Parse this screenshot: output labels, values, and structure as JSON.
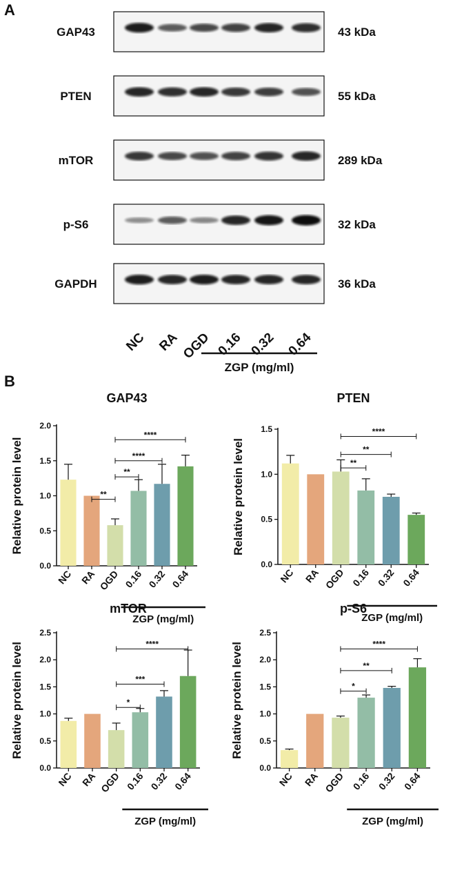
{
  "panels": {
    "a": "A",
    "b": "B"
  },
  "western_blot": {
    "rows": [
      {
        "protein": "GAP43",
        "mw": "43 kDa",
        "intensities": [
          0.9,
          0.55,
          0.65,
          0.7,
          0.85,
          0.8
        ]
      },
      {
        "protein": "PTEN",
        "mw": "55 kDa",
        "intensities": [
          0.85,
          0.8,
          0.85,
          0.75,
          0.72,
          0.6
        ]
      },
      {
        "protein": "mTOR",
        "mw": "289 kDa",
        "intensities": [
          0.75,
          0.65,
          0.6,
          0.7,
          0.78,
          0.85
        ]
      },
      {
        "protein": "p-S6",
        "mw": "32 kDa",
        "intensities": [
          0.25,
          0.55,
          0.3,
          0.85,
          0.95,
          1.0
        ]
      },
      {
        "protein": "GAPDH",
        "mw": "36 kDa",
        "intensities": [
          0.9,
          0.85,
          0.9,
          0.85,
          0.85,
          0.85
        ]
      }
    ],
    "lanes": [
      "NC",
      "RA",
      "OGD",
      "0.16",
      "0.32",
      "0.64"
    ],
    "group_label": "ZGP (mg/ml)"
  },
  "colors": [
    "#f2eca8",
    "#e4a67c",
    "#d3deaa",
    "#93bda6",
    "#6e9dac",
    "#6ca85c"
  ],
  "chart_data": [
    {
      "type": "bar",
      "title": "GAP43",
      "ylabel": "Relative protein level",
      "categories": [
        "NC",
        "RA",
        "OGD",
        "0.16",
        "0.32",
        "0.64"
      ],
      "values": [
        1.23,
        1.0,
        0.58,
        1.07,
        1.17,
        1.42
      ],
      "errors": [
        0.22,
        0.0,
        0.09,
        0.16,
        0.28,
        0.16
      ],
      "ylim": [
        0,
        2.0
      ],
      "yticks": [
        "0.0",
        "0.5",
        "1.0",
        "1.5",
        "2.0"
      ],
      "group_label": "ZGP (mg/ml)",
      "significance": [
        {
          "from": 1,
          "to": 2,
          "y": 0.95,
          "label": "**"
        },
        {
          "from": 2,
          "to": 3,
          "y": 1.27,
          "label": "**"
        },
        {
          "from": 2,
          "to": 4,
          "y": 1.5,
          "label": "****"
        },
        {
          "from": 2,
          "to": 5,
          "y": 1.8,
          "label": "****"
        }
      ]
    },
    {
      "type": "bar",
      "title": "PTEN",
      "ylabel": "Relative protein level",
      "categories": [
        "NC",
        "RA",
        "OGD",
        "0.16",
        "0.32",
        "0.64"
      ],
      "values": [
        1.12,
        1.0,
        1.03,
        0.82,
        0.75,
        0.55
      ],
      "errors": [
        0.09,
        0.0,
        0.13,
        0.13,
        0.03,
        0.02
      ],
      "ylim": [
        0,
        1.5
      ],
      "yticks": [
        "0.0",
        "0.5",
        "1.0",
        "1.5"
      ],
      "group_label": "ZGP (mg/ml)",
      "significance": [
        {
          "from": 2,
          "to": 3,
          "y": 1.07,
          "label": "**"
        },
        {
          "from": 2,
          "to": 4,
          "y": 1.22,
          "label": "**"
        },
        {
          "from": 2,
          "to": 5,
          "y": 1.42,
          "label": "****"
        }
      ]
    },
    {
      "type": "bar",
      "title": "mTOR",
      "ylabel": "Relative protein level",
      "categories": [
        "NC",
        "RA",
        "OGD",
        "0.16",
        "0.32",
        "0.64"
      ],
      "values": [
        0.87,
        1.0,
        0.7,
        1.03,
        1.32,
        1.7
      ],
      "errors": [
        0.05,
        0.0,
        0.13,
        0.07,
        0.11,
        0.48
      ],
      "ylim": [
        0,
        2.5
      ],
      "yticks": [
        "0.0",
        "0.5",
        "1.0",
        "1.5",
        "2.0",
        "2.5"
      ],
      "group_label": "ZGP (mg/ml)",
      "significance": [
        {
          "from": 2,
          "to": 3,
          "y": 1.12,
          "label": "*"
        },
        {
          "from": 2,
          "to": 4,
          "y": 1.55,
          "label": "***"
        },
        {
          "from": 2,
          "to": 5,
          "y": 2.2,
          "label": "****"
        }
      ]
    },
    {
      "type": "bar",
      "title": "p-S6",
      "ylabel": "Relative protein level",
      "categories": [
        "NC",
        "RA",
        "OGD",
        "0.16",
        "0.32",
        "0.64"
      ],
      "values": [
        0.33,
        1.0,
        0.93,
        1.3,
        1.48,
        1.86
      ],
      "errors": [
        0.02,
        0.0,
        0.03,
        0.05,
        0.03,
        0.16
      ],
      "ylim": [
        0,
        2.5
      ],
      "yticks": [
        "0.0",
        "0.5",
        "1.0",
        "1.5",
        "2.0",
        "2.5"
      ],
      "group_label": "ZGP (mg/ml)",
      "significance": [
        {
          "from": 2,
          "to": 3,
          "y": 1.42,
          "label": "*"
        },
        {
          "from": 2,
          "to": 4,
          "y": 1.8,
          "label": "**"
        },
        {
          "from": 2,
          "to": 5,
          "y": 2.2,
          "label": "****"
        }
      ]
    }
  ]
}
